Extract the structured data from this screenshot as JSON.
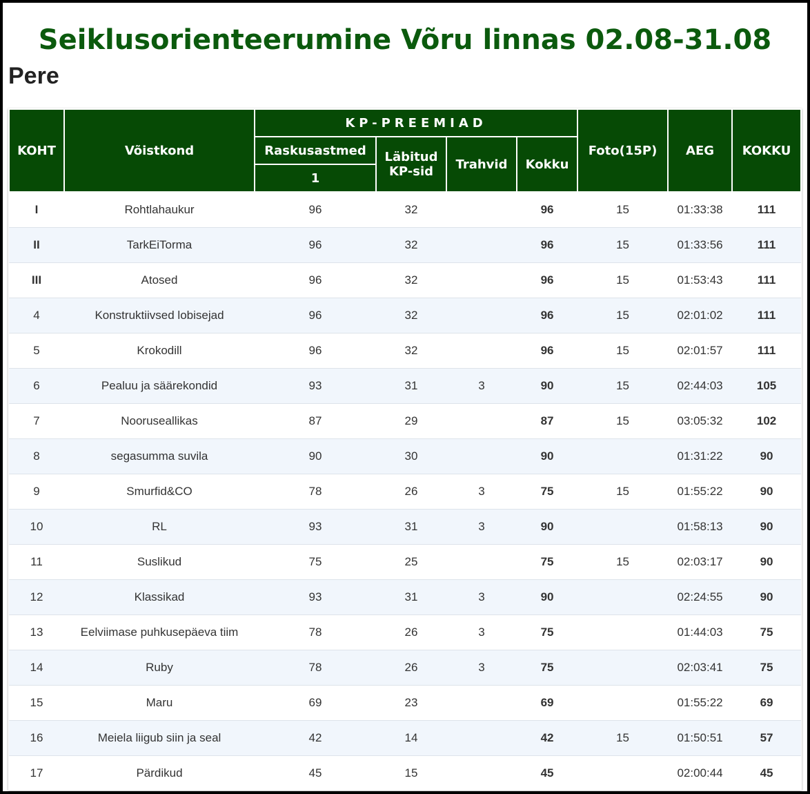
{
  "title": "Seiklusorienteerumine Võru linnas 02.08-31.08",
  "category": "Pere",
  "headers": {
    "koht": "KOHT",
    "voistkond": "Võistkond",
    "kp_group": "KP-PREEMIAD",
    "raskusastmed": "Raskusastmed",
    "raskusaste_1": "1",
    "labitud_line1": "Läbitud",
    "labitud_line2": "KP-sid",
    "trahvid": "Trahvid",
    "kokku_sub": "Kokku",
    "foto": "Foto(15P)",
    "aeg": "AEG",
    "kokku": "KOKKU"
  },
  "colors": {
    "title": "#0b5a0d",
    "header_bg": "#064a05",
    "row_alt": "#f1f6fc"
  },
  "rows": [
    {
      "koht": "I",
      "team": "Rohtlahaukur",
      "r1": "96",
      "labitud": "32",
      "trahvid": "",
      "kokku": "96",
      "foto": "15",
      "aeg": "01:33:38",
      "total": "111"
    },
    {
      "koht": "II",
      "team": "TarkEiTorma",
      "r1": "96",
      "labitud": "32",
      "trahvid": "",
      "kokku": "96",
      "foto": "15",
      "aeg": "01:33:56",
      "total": "111"
    },
    {
      "koht": "III",
      "team": "Atosed",
      "r1": "96",
      "labitud": "32",
      "trahvid": "",
      "kokku": "96",
      "foto": "15",
      "aeg": "01:53:43",
      "total": "111"
    },
    {
      "koht": "4",
      "team": "Konstruktiivsed lobisejad",
      "r1": "96",
      "labitud": "32",
      "trahvid": "",
      "kokku": "96",
      "foto": "15",
      "aeg": "02:01:02",
      "total": "111"
    },
    {
      "koht": "5",
      "team": "Krokodill",
      "r1": "96",
      "labitud": "32",
      "trahvid": "",
      "kokku": "96",
      "foto": "15",
      "aeg": "02:01:57",
      "total": "111"
    },
    {
      "koht": "6",
      "team": "Pealuu ja säärekondid",
      "r1": "93",
      "labitud": "31",
      "trahvid": "3",
      "kokku": "90",
      "foto": "15",
      "aeg": "02:44:03",
      "total": "105"
    },
    {
      "koht": "7",
      "team": "Noorusеallikas",
      "r1": "87",
      "labitud": "29",
      "trahvid": "",
      "kokku": "87",
      "foto": "15",
      "aeg": "03:05:32",
      "total": "102"
    },
    {
      "koht": "8",
      "team": "segasumma suvila",
      "r1": "90",
      "labitud": "30",
      "trahvid": "",
      "kokku": "90",
      "foto": "",
      "aeg": "01:31:22",
      "total": "90"
    },
    {
      "koht": "9",
      "team": "Smurfid&CO",
      "r1": "78",
      "labitud": "26",
      "trahvid": "3",
      "kokku": "75",
      "foto": "15",
      "aeg": "01:55:22",
      "total": "90"
    },
    {
      "koht": "10",
      "team": "RL",
      "r1": "93",
      "labitud": "31",
      "trahvid": "3",
      "kokku": "90",
      "foto": "",
      "aeg": "01:58:13",
      "total": "90"
    },
    {
      "koht": "11",
      "team": "Suslikud",
      "r1": "75",
      "labitud": "25",
      "trahvid": "",
      "kokku": "75",
      "foto": "15",
      "aeg": "02:03:17",
      "total": "90"
    },
    {
      "koht": "12",
      "team": "Klassikad",
      "r1": "93",
      "labitud": "31",
      "trahvid": "3",
      "kokku": "90",
      "foto": "",
      "aeg": "02:24:55",
      "total": "90"
    },
    {
      "koht": "13",
      "team": "Eelviimase puhkusepäeva tiim",
      "r1": "78",
      "labitud": "26",
      "trahvid": "3",
      "kokku": "75",
      "foto": "",
      "aeg": "01:44:03",
      "total": "75"
    },
    {
      "koht": "14",
      "team": "Ruby",
      "r1": "78",
      "labitud": "26",
      "trahvid": "3",
      "kokku": "75",
      "foto": "",
      "aeg": "02:03:41",
      "total": "75"
    },
    {
      "koht": "15",
      "team": "Maru",
      "r1": "69",
      "labitud": "23",
      "trahvid": "",
      "kokku": "69",
      "foto": "",
      "aeg": "01:55:22",
      "total": "69"
    },
    {
      "koht": "16",
      "team": "Meiela liigub siin ja seal",
      "r1": "42",
      "labitud": "14",
      "trahvid": "",
      "kokku": "42",
      "foto": "15",
      "aeg": "01:50:51",
      "total": "57"
    },
    {
      "koht": "17",
      "team": "Pärdikud",
      "r1": "45",
      "labitud": "15",
      "trahvid": "",
      "kokku": "45",
      "foto": "",
      "aeg": "02:00:44",
      "total": "45"
    }
  ]
}
